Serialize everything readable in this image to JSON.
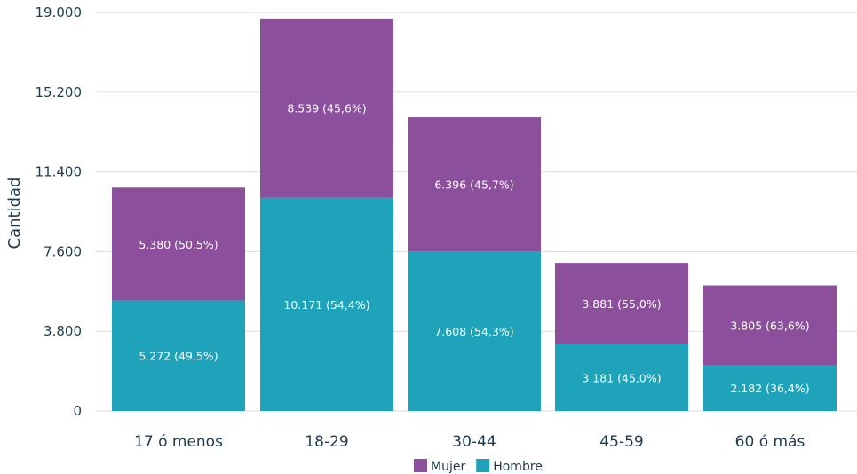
{
  "chart_data": {
    "type": "bar",
    "stacked": true,
    "ylabel": "Cantidad",
    "ylim": [
      0,
      19000
    ],
    "yticks": [
      "0",
      "3.800",
      "7.600",
      "11.400",
      "15.200",
      "19.000"
    ],
    "ytick_values": [
      0,
      3800,
      7600,
      11400,
      15200,
      19000
    ],
    "categories": [
      "17 ó menos",
      "18-29",
      "30-44",
      "45-59",
      "60 ó más"
    ],
    "series": [
      {
        "name": "Hombre",
        "color": "#1fa3bb",
        "values": [
          5272,
          10171,
          7608,
          3181,
          2182
        ],
        "labels": [
          "5.272  (49,5%)",
          "10.171  (54,4%)",
          "7.608  (54,3%)",
          "3.181  (45,0%)",
          "2.182  (36,4%)"
        ]
      },
      {
        "name": "Mujer",
        "color": "#8b4f9c",
        "values": [
          5380,
          8539,
          6396,
          3881,
          3805
        ],
        "labels": [
          "5.380  (50,5%)",
          "8.539  (45,6%)",
          "6.396  (45,7%)",
          "3.881  (55,0%)",
          "3.805  (63,6%)"
        ]
      }
    ],
    "legend": {
      "placement": "bottom",
      "order": [
        "Mujer",
        "Hombre"
      ]
    },
    "grid": true
  }
}
